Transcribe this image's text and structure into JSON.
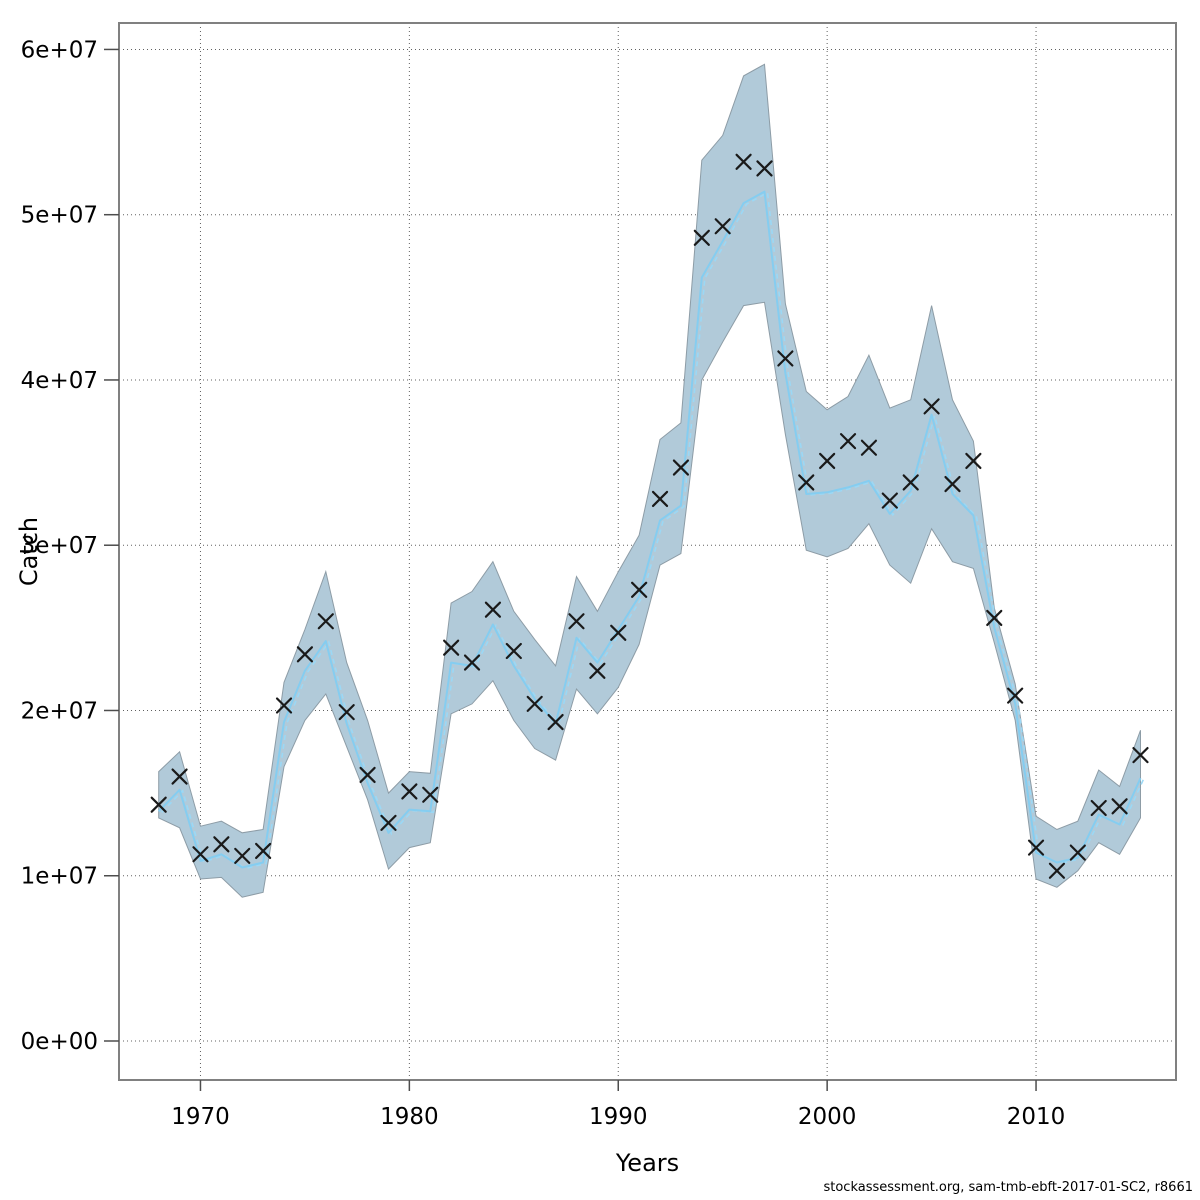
{
  "chart_data": {
    "type": "line",
    "title": "",
    "xlabel": "Years",
    "ylabel": "Catch",
    "footer": "stockassessment.org, sam-tmb-ebft-2017-01-SC2, r8661",
    "grid": true,
    "legend_position": "none",
    "xlim": [
      1966.1,
      2016.7
    ],
    "ylim": [
      -2360000,
      61600000
    ],
    "x_ticks": [
      1970,
      1980,
      1990,
      2000,
      2010
    ],
    "x_tick_labels": [
      "1970",
      "1980",
      "1990",
      "2000",
      "2010"
    ],
    "y_ticks": [
      0,
      10000000,
      20000000,
      30000000,
      40000000,
      50000000,
      60000000
    ],
    "y_tick_labels": [
      "0e+00",
      "1e+07",
      "2e+07",
      "3e+07",
      "4e+07",
      "5e+07",
      "6e+07"
    ],
    "x": [
      1968,
      1969,
      1970,
      1971,
      1972,
      1973,
      1974,
      1975,
      1976,
      1977,
      1978,
      1979,
      1980,
      1981,
      1982,
      1983,
      1984,
      1985,
      1986,
      1987,
      1988,
      1989,
      1990,
      1991,
      1992,
      1993,
      1994,
      1995,
      1996,
      1997,
      1998,
      1999,
      2000,
      2001,
      2002,
      2003,
      2004,
      2005,
      2006,
      2007,
      2008,
      2009,
      2010,
      2011,
      2012,
      2013,
      2014,
      2015
    ],
    "series": [
      {
        "name": "observed-catch",
        "style": "x-markers",
        "color": "#1a1a1a",
        "values": [
          14300000,
          16000000,
          11300000,
          11900000,
          11200000,
          11500000,
          20300000,
          23400000,
          25400000,
          19900000,
          16100000,
          13200000,
          15100000,
          14900000,
          23800000,
          22900000,
          26100000,
          23600000,
          20400000,
          19300000,
          25400000,
          22400000,
          24700000,
          27300000,
          32800000,
          34700000,
          48600000,
          49300000,
          53200000,
          52800000,
          41300000,
          33800000,
          35100000,
          36300000,
          35900000,
          32700000,
          33800000,
          38400000,
          33700000,
          35100000,
          25600000,
          20900000,
          11700000,
          10300000,
          11400000,
          14100000,
          14200000,
          17300000
        ]
      },
      {
        "name": "fitted-catch",
        "style": "solid-line",
        "color": "#85cdf0",
        "values": [
          13900000,
          15200000,
          10900000,
          11300000,
          10500000,
          10800000,
          19300000,
          22400000,
          24200000,
          19200000,
          15600000,
          12600000,
          14000000,
          13900000,
          22900000,
          22700000,
          25200000,
          22700000,
          20700000,
          19200000,
          24400000,
          22900000,
          24900000,
          26900000,
          31500000,
          32400000,
          46200000,
          48400000,
          50700000,
          51400000,
          40400000,
          33100000,
          33200000,
          33500000,
          33900000,
          31900000,
          33300000,
          37900000,
          33100000,
          31800000,
          25000000,
          20400000,
          11400000,
          10800000,
          11100000,
          13700000,
          13100000,
          15900000
        ]
      },
      {
        "name": "ci-lower",
        "style": "band-edge",
        "color": "#b1cad9",
        "values": [
          13500000,
          12900000,
          9800000,
          9900000,
          8700000,
          9000000,
          16600000,
          19400000,
          21000000,
          17800000,
          14600000,
          10400000,
          11700000,
          12000000,
          19800000,
          20400000,
          21800000,
          19400000,
          17700000,
          17000000,
          21300000,
          19800000,
          21400000,
          24000000,
          28800000,
          29500000,
          40000000,
          42300000,
          44500000,
          44700000,
          36700000,
          29700000,
          29300000,
          29800000,
          31300000,
          28800000,
          27700000,
          31000000,
          29000000,
          28600000,
          24100000,
          19400000,
          9800000,
          9300000,
          10300000,
          12000000,
          11300000,
          13500000
        ]
      },
      {
        "name": "ci-upper",
        "style": "band-edge",
        "color": "#b1cad9",
        "values": [
          16300000,
          17500000,
          13000000,
          13300000,
          12600000,
          12800000,
          21700000,
          24900000,
          28400000,
          22900000,
          19400000,
          15000000,
          16300000,
          16200000,
          26500000,
          27200000,
          29000000,
          26000000,
          24300000,
          22700000,
          28100000,
          26000000,
          28400000,
          30600000,
          36400000,
          37400000,
          53300000,
          54800000,
          58400000,
          59100000,
          44600000,
          39300000,
          38200000,
          39000000,
          41500000,
          38300000,
          38800000,
          44500000,
          38800000,
          36300000,
          26200000,
          21600000,
          13600000,
          12800000,
          13300000,
          16400000,
          15400000,
          18800000
        ]
      }
    ],
    "colors": {
      "band_fill": "#b1cad9",
      "band_edge": "#8d9ca6",
      "fit_line": "#85cdf0",
      "fit_line_dashed": "#9bd8f5",
      "marker": "#1a1a1a",
      "plot_border": "#808080",
      "grid": "#606060",
      "tick": "#4d4d4d",
      "background": "#ffffff"
    }
  }
}
